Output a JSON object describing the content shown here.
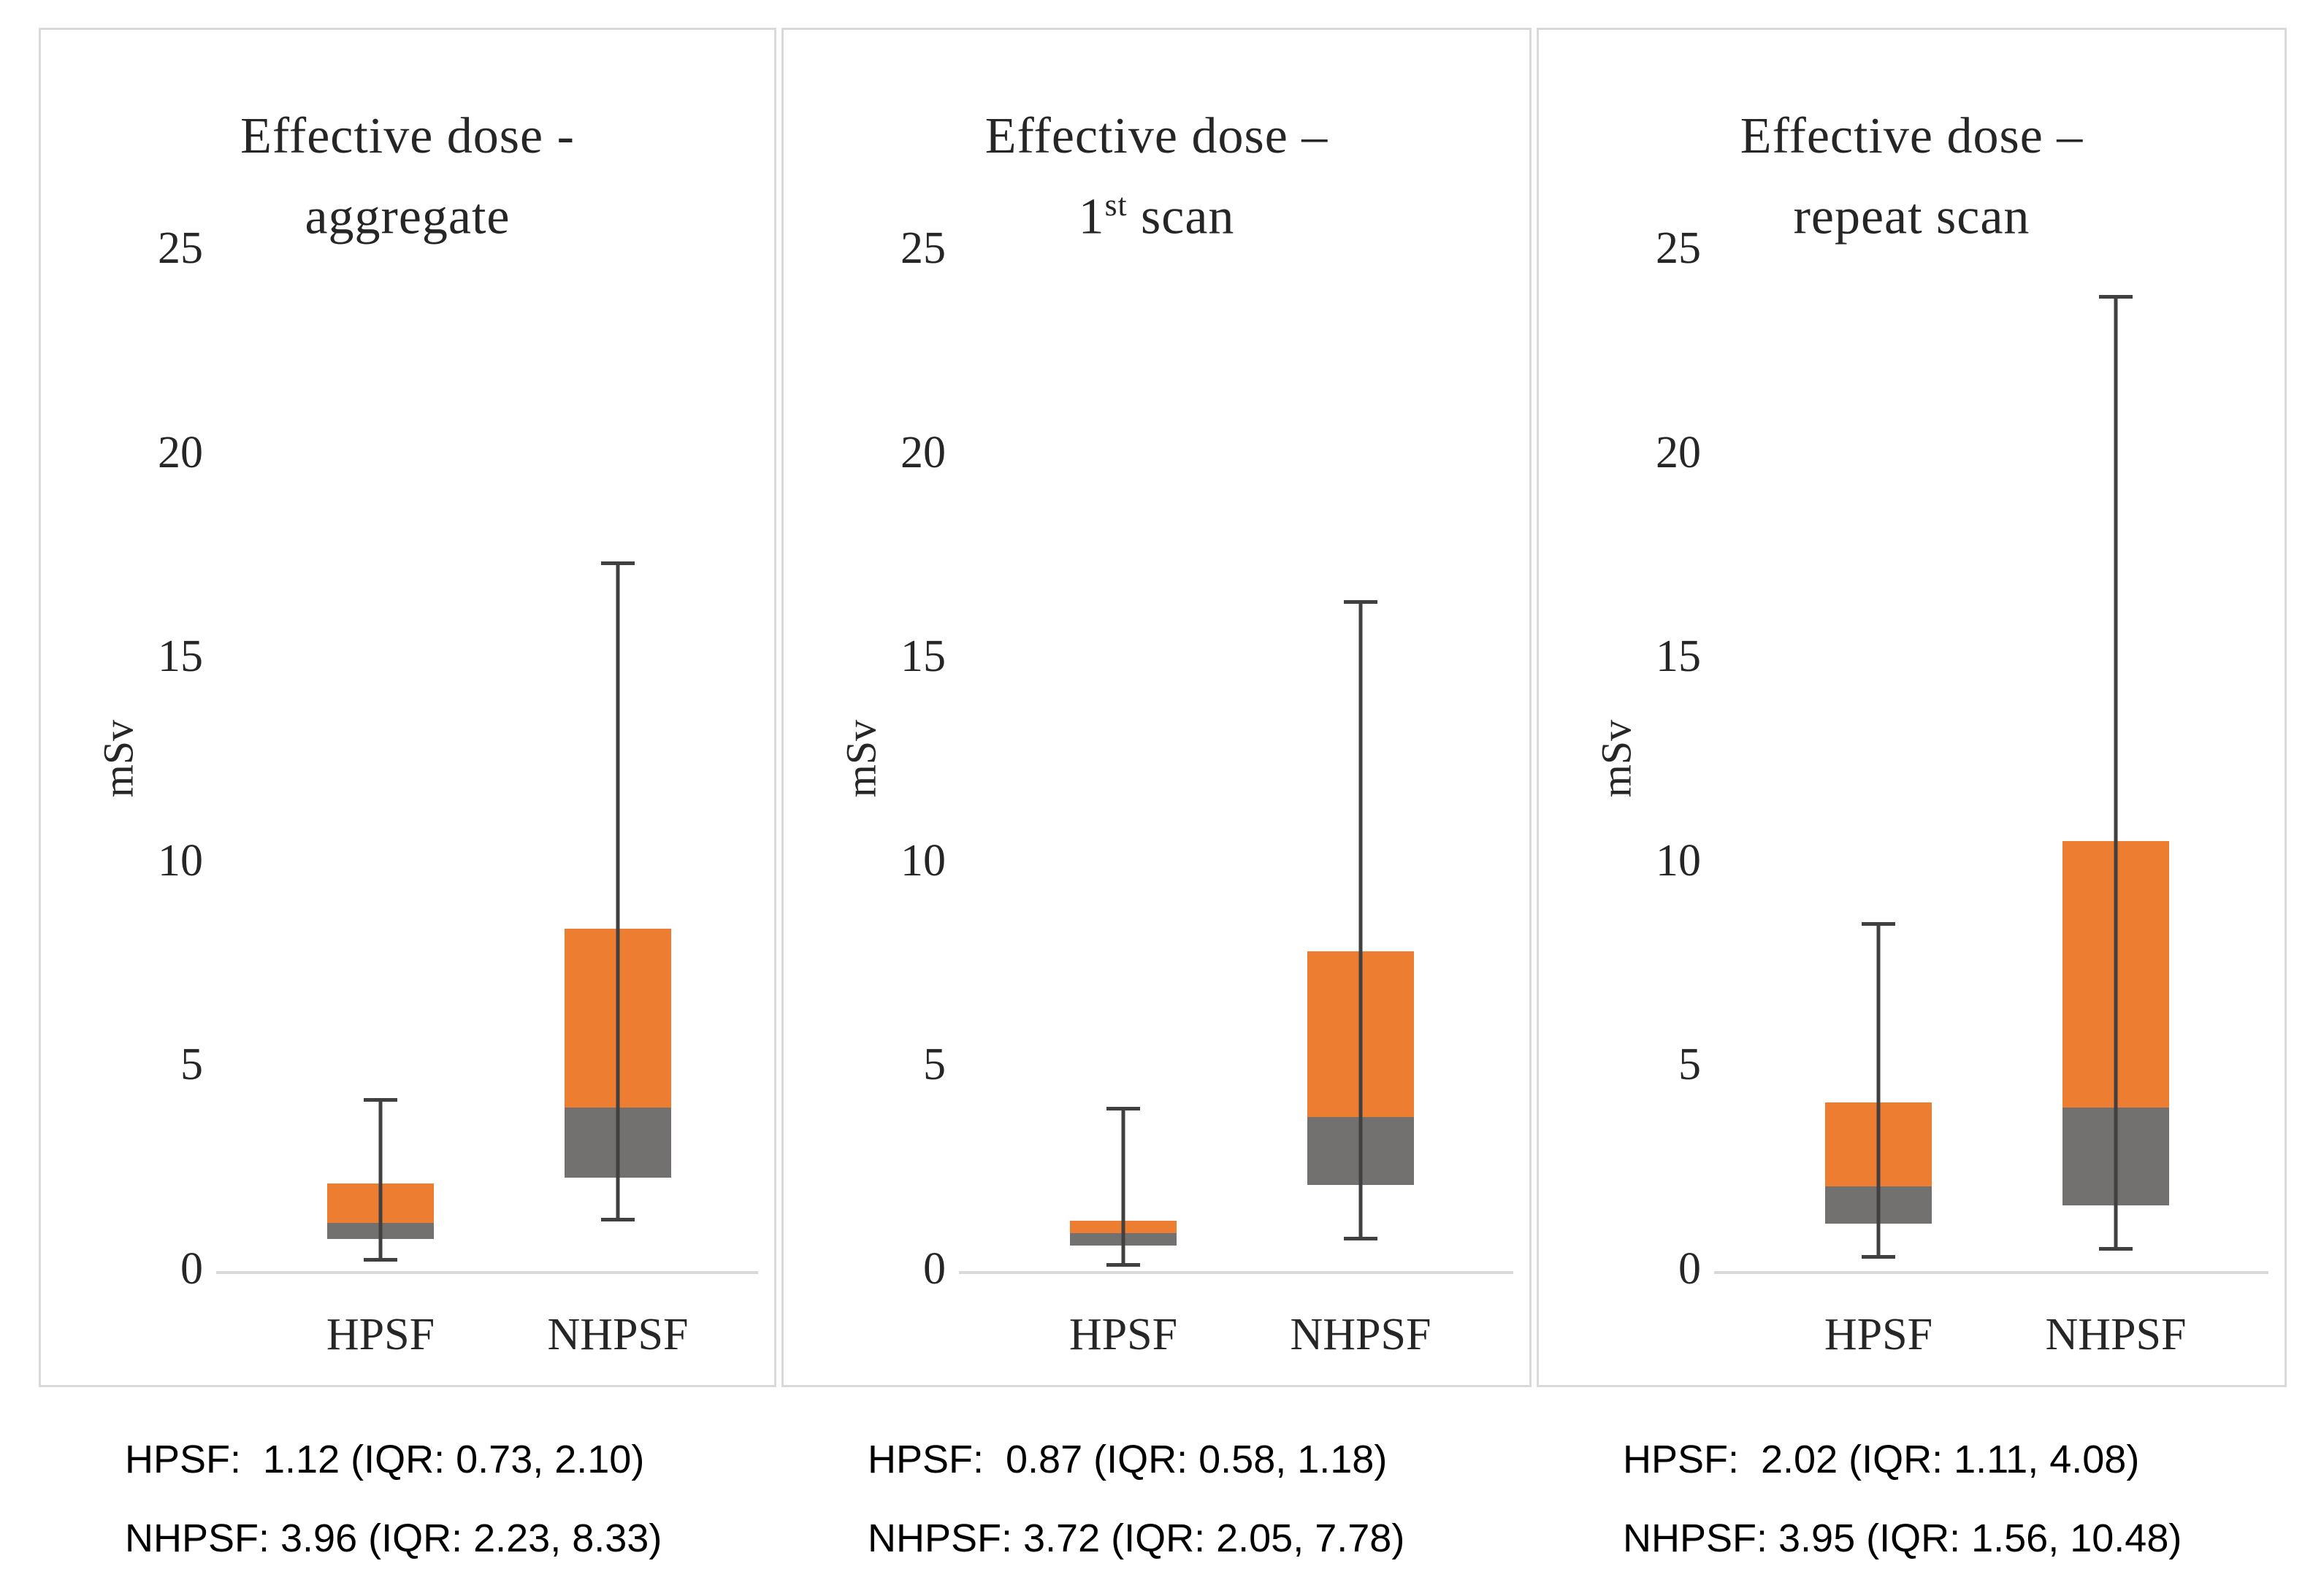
{
  "figure": {
    "y_axis_label": "mSv",
    "colors": {
      "box_upper_orange": "#ED7D31",
      "box_lower_gray": "#737070",
      "whisker": "#404040",
      "axis_line": "#D9D9D9",
      "panel_border": "#D9D9D9",
      "chart_text": "#262626",
      "stats_text": "#000000"
    }
  },
  "chart_data": [
    {
      "type": "box",
      "title": {
        "line1": "Effective dose -",
        "line2_pre": "aggregate",
        "line2_sup": "",
        "line2_post": ""
      },
      "ylabel": "mSv",
      "ylim": [
        0,
        25
      ],
      "yticks": [
        0,
        5,
        10,
        15,
        20,
        25
      ],
      "categories": [
        "HPSF",
        "NHPSF"
      ],
      "series": [
        {
          "name": "HPSF",
          "whisker_low": 0.18,
          "q1": 0.73,
          "median": 1.12,
          "q3": 2.1,
          "whisker_high": 4.19
        },
        {
          "name": "NHPSF",
          "whisker_low": 1.16,
          "q1": 2.23,
          "median": 3.96,
          "q3": 8.33,
          "whisker_high": 17.32
        }
      ],
      "stats_lines": [
        "HPSF:  1.12 (IQR: 0.73, 2.10)",
        "NHPSF: 3.96 (IQR: 2.23, 8.33)"
      ]
    },
    {
      "type": "box",
      "title": {
        "line1": "Effective dose –",
        "line2_pre": "1",
        "line2_sup": "st",
        "line2_post": " scan"
      },
      "ylabel": "mSv",
      "ylim": [
        0,
        25
      ],
      "yticks": [
        0,
        5,
        10,
        15,
        20,
        25
      ],
      "categories": [
        "HPSF",
        "NHPSF"
      ],
      "series": [
        {
          "name": "HPSF",
          "whisker_low": 0.05,
          "q1": 0.58,
          "median": 0.87,
          "q3": 1.18,
          "whisker_high": 3.97
        },
        {
          "name": "NHPSF",
          "whisker_low": 0.7,
          "q1": 2.05,
          "median": 3.72,
          "q3": 7.78,
          "whisker_high": 16.38
        }
      ],
      "stats_lines": [
        "HPSF:  0.87 (IQR: 0.58, 1.18)",
        "NHPSF: 3.72 (IQR: 2.05, 7.78)"
      ]
    },
    {
      "type": "box",
      "title": {
        "line1": "Effective dose –",
        "line2_pre": "repeat scan",
        "line2_sup": "",
        "line2_post": ""
      },
      "ylabel": "mSv",
      "ylim": [
        0,
        25
      ],
      "yticks": [
        0,
        5,
        10,
        15,
        20,
        25
      ],
      "categories": [
        "HPSF",
        "NHPSF"
      ],
      "series": [
        {
          "name": "HPSF",
          "whisker_low": 0.25,
          "q1": 1.11,
          "median": 2.02,
          "q3": 4.08,
          "whisker_high": 8.5
        },
        {
          "name": "NHPSF",
          "whisker_low": 0.45,
          "q1": 1.56,
          "median": 3.95,
          "q3": 10.48,
          "whisker_high": 23.85
        }
      ],
      "stats_lines": [
        "HPSF:  2.02 (IQR: 1.11, 4.08)",
        "NHPSF: 3.95 (IQR: 1.56, 10.48)"
      ]
    }
  ]
}
